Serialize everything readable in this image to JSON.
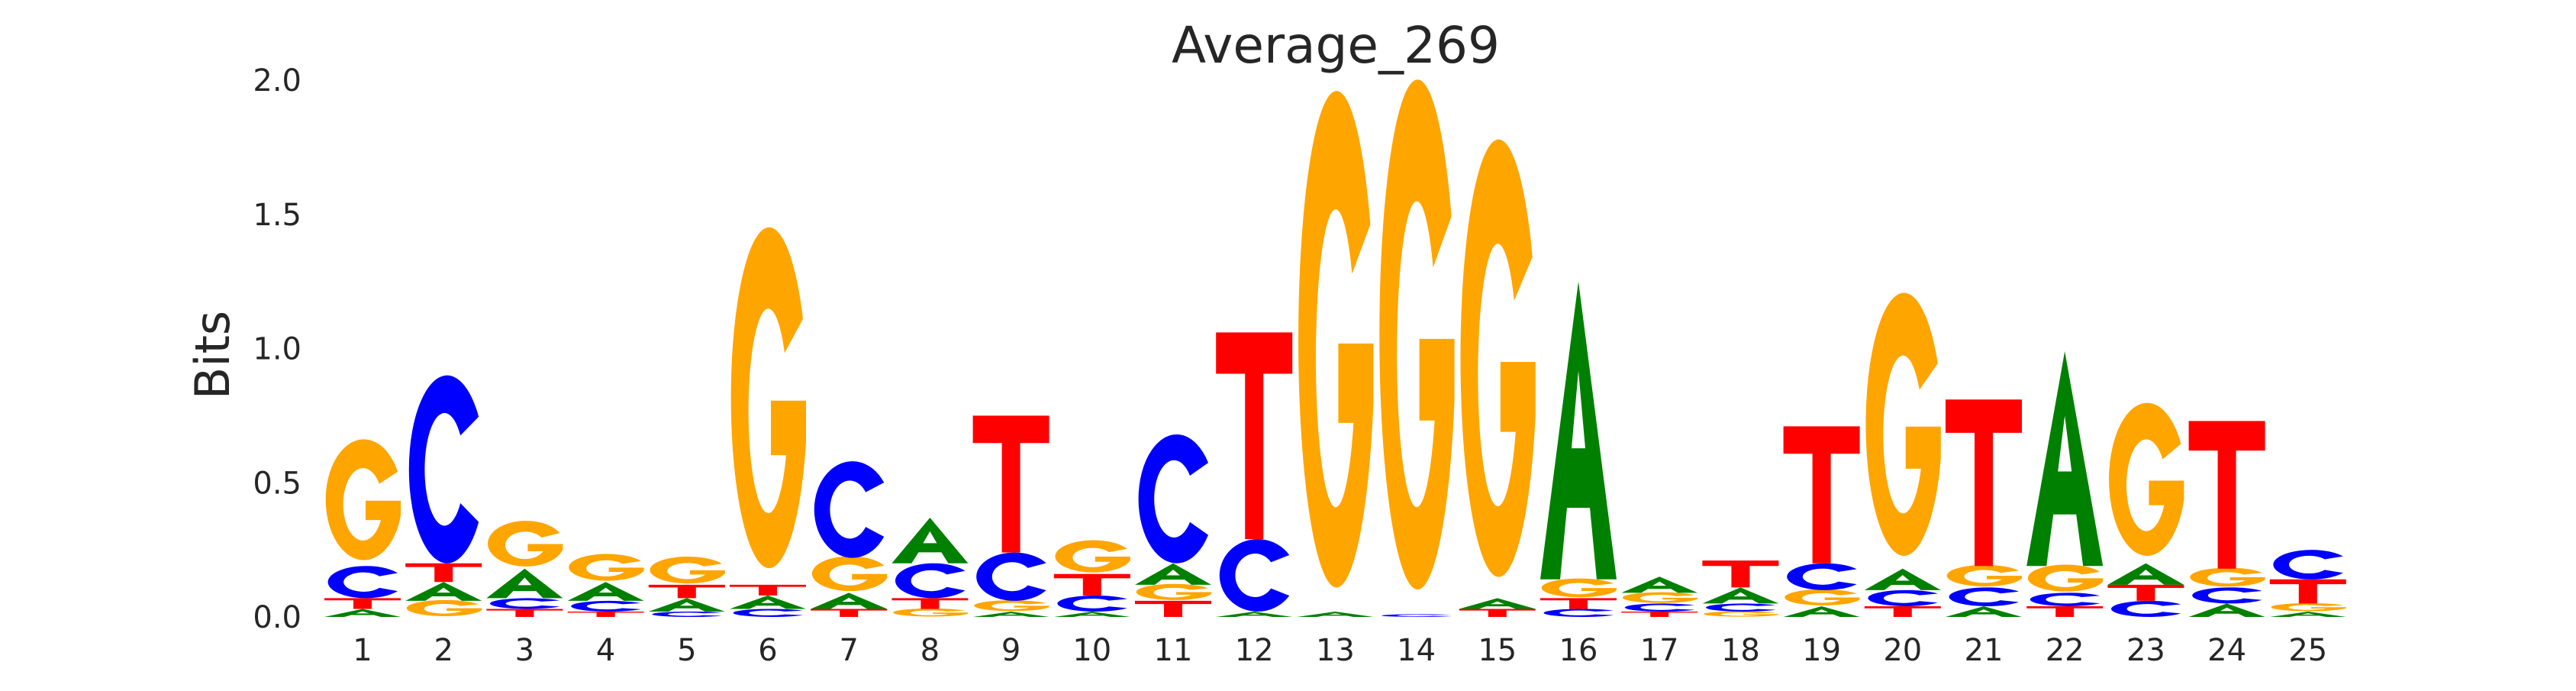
{
  "chart_data": {
    "type": "sequence-logo",
    "title": "Average_269",
    "ylabel": "Bits",
    "xlabel": "",
    "ylim": [
      0,
      2.0
    ],
    "yticks": [
      "0.0",
      "0.5",
      "1.0",
      "1.5",
      "2.0"
    ],
    "grid": false,
    "legend": "none",
    "colors": {
      "A": "#008000",
      "C": "#0000ff",
      "G": "#ffa500",
      "T": "#ff0000"
    },
    "positions": [
      {
        "label": "1",
        "letters": [
          {
            "base": "A",
            "bits": 0.03
          },
          {
            "base": "T",
            "bits": 0.04
          },
          {
            "base": "C",
            "bits": 0.12
          },
          {
            "base": "G",
            "bits": 0.45
          }
        ]
      },
      {
        "label": "2",
        "letters": [
          {
            "base": "G",
            "bits": 0.06
          },
          {
            "base": "A",
            "bits": 0.07
          },
          {
            "base": "T",
            "bits": 0.07
          },
          {
            "base": "C",
            "bits": 0.7
          }
        ]
      },
      {
        "label": "3",
        "letters": [
          {
            "base": "T",
            "bits": 0.03
          },
          {
            "base": "C",
            "bits": 0.04
          },
          {
            "base": "A",
            "bits": 0.11
          },
          {
            "base": "G",
            "bits": 0.17
          }
        ]
      },
      {
        "label": "4",
        "letters": [
          {
            "base": "T",
            "bits": 0.02
          },
          {
            "base": "C",
            "bits": 0.04
          },
          {
            "base": "A",
            "bits": 0.07
          },
          {
            "base": "G",
            "bits": 0.1
          }
        ]
      },
      {
        "label": "5",
        "letters": [
          {
            "base": "C",
            "bits": 0.02
          },
          {
            "base": "A",
            "bits": 0.05
          },
          {
            "base": "T",
            "bits": 0.05
          },
          {
            "base": "G",
            "bits": 0.1
          }
        ]
      },
      {
        "label": "6",
        "letters": [
          {
            "base": "C",
            "bits": 0.03
          },
          {
            "base": "A",
            "bits": 0.05
          },
          {
            "base": "T",
            "bits": 0.04
          },
          {
            "base": "G",
            "bits": 1.27
          }
        ]
      },
      {
        "label": "7",
        "letters": [
          {
            "base": "T",
            "bits": 0.03
          },
          {
            "base": "A",
            "bits": 0.06
          },
          {
            "base": "G",
            "bits": 0.13
          },
          {
            "base": "C",
            "bits": 0.36
          }
        ]
      },
      {
        "label": "8",
        "letters": [
          {
            "base": "G",
            "bits": 0.03
          },
          {
            "base": "T",
            "bits": 0.04
          },
          {
            "base": "C",
            "bits": 0.13
          },
          {
            "base": "A",
            "bits": 0.17
          }
        ]
      },
      {
        "label": "9",
        "letters": [
          {
            "base": "A",
            "bits": 0.02
          },
          {
            "base": "G",
            "bits": 0.04
          },
          {
            "base": "C",
            "bits": 0.18
          },
          {
            "base": "T",
            "bits": 0.51
          }
        ]
      },
      {
        "label": "10",
        "letters": [
          {
            "base": "A",
            "bits": 0.02
          },
          {
            "base": "C",
            "bits": 0.06
          },
          {
            "base": "T",
            "bits": 0.08
          },
          {
            "base": "G",
            "bits": 0.12
          }
        ]
      },
      {
        "label": "11",
        "letters": [
          {
            "base": "T",
            "bits": 0.06
          },
          {
            "base": "G",
            "bits": 0.06
          },
          {
            "base": "A",
            "bits": 0.08
          },
          {
            "base": "C",
            "bits": 0.48
          }
        ]
      },
      {
        "label": "12",
        "letters": [
          {
            "base": "A",
            "bits": 0.02
          },
          {
            "base": "C",
            "bits": 0.27
          },
          {
            "base": "T",
            "bits": 0.77
          }
        ]
      },
      {
        "label": "13",
        "letters": [
          {
            "base": "A",
            "bits": 0.02
          },
          {
            "base": "G",
            "bits": 1.85
          }
        ]
      },
      {
        "label": "14",
        "letters": [
          {
            "base": "C",
            "bits": 0.01
          },
          {
            "base": "G",
            "bits": 1.9
          }
        ]
      },
      {
        "label": "15",
        "letters": [
          {
            "base": "T",
            "bits": 0.03
          },
          {
            "base": "A",
            "bits": 0.04
          },
          {
            "base": "G",
            "bits": 1.63
          }
        ]
      },
      {
        "label": "16",
        "letters": [
          {
            "base": "C",
            "bits": 0.03
          },
          {
            "base": "T",
            "bits": 0.04
          },
          {
            "base": "G",
            "bits": 0.07
          },
          {
            "base": "A",
            "bits": 1.11
          }
        ]
      },
      {
        "label": "17",
        "letters": [
          {
            "base": "T",
            "bits": 0.02
          },
          {
            "base": "C",
            "bits": 0.03
          },
          {
            "base": "G",
            "bits": 0.04
          },
          {
            "base": "A",
            "bits": 0.06
          }
        ]
      },
      {
        "label": "18",
        "letters": [
          {
            "base": "G",
            "bits": 0.02
          },
          {
            "base": "C",
            "bits": 0.03
          },
          {
            "base": "A",
            "bits": 0.06
          },
          {
            "base": "T",
            "bits": 0.1
          }
        ]
      },
      {
        "label": "19",
        "letters": [
          {
            "base": "A",
            "bits": 0.04
          },
          {
            "base": "G",
            "bits": 0.06
          },
          {
            "base": "C",
            "bits": 0.1
          },
          {
            "base": "T",
            "bits": 0.51
          }
        ]
      },
      {
        "label": "20",
        "letters": [
          {
            "base": "T",
            "bits": 0.04
          },
          {
            "base": "C",
            "bits": 0.06
          },
          {
            "base": "A",
            "bits": 0.08
          },
          {
            "base": "G",
            "bits": 0.98
          }
        ]
      },
      {
        "label": "21",
        "letters": [
          {
            "base": "A",
            "bits": 0.04
          },
          {
            "base": "C",
            "bits": 0.07
          },
          {
            "base": "G",
            "bits": 0.08
          },
          {
            "base": "T",
            "bits": 0.62
          }
        ]
      },
      {
        "label": "22",
        "letters": [
          {
            "base": "T",
            "bits": 0.04
          },
          {
            "base": "C",
            "bits": 0.05
          },
          {
            "base": "G",
            "bits": 0.1
          },
          {
            "base": "A",
            "bits": 0.8
          }
        ]
      },
      {
        "label": "23",
        "letters": [
          {
            "base": "C",
            "bits": 0.06
          },
          {
            "base": "T",
            "bits": 0.06
          },
          {
            "base": "A",
            "bits": 0.08
          },
          {
            "base": "G",
            "bits": 0.57
          }
        ]
      },
      {
        "label": "24",
        "letters": [
          {
            "base": "A",
            "bits": 0.05
          },
          {
            "base": "C",
            "bits": 0.06
          },
          {
            "base": "G",
            "bits": 0.07
          },
          {
            "base": "T",
            "bits": 0.55
          }
        ]
      },
      {
        "label": "25",
        "letters": [
          {
            "base": "A",
            "bits": 0.02
          },
          {
            "base": "G",
            "bits": 0.03
          },
          {
            "base": "T",
            "bits": 0.09
          },
          {
            "base": "C",
            "bits": 0.11
          }
        ]
      }
    ]
  }
}
